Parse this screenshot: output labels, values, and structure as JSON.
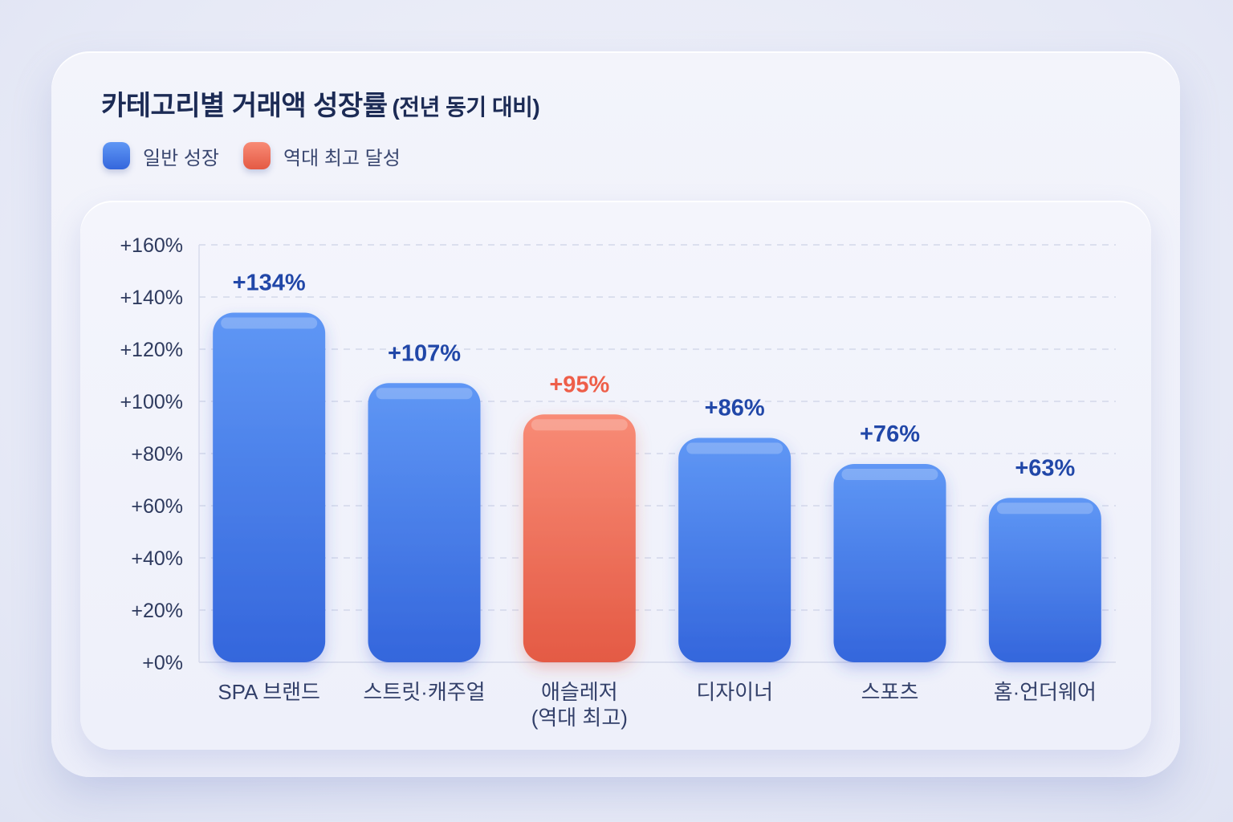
{
  "title": "카테고리별 거래액 성장률",
  "subtitle": "(전년 동기 대비)",
  "legend": [
    {
      "label": "일반 성장",
      "color": "#3f73e6"
    },
    {
      "label": "역대 최고 달성",
      "color": "#f26a55"
    }
  ],
  "colors": {
    "normal_top": "#5f97f5",
    "normal_bottom": "#3466dc",
    "record_top": "#f88b76",
    "record_bottom": "#e45a44",
    "normal_label": "#2147a8",
    "record_label": "#ee5e49"
  },
  "chart_data": {
    "type": "bar",
    "title": "카테고리별 거래액 성장률 (전년 동기 대비)",
    "categories": [
      "SPA 브랜드",
      "스트릿·캐주얼",
      "애슬레저\n(역대 최고)",
      "디자이너",
      "스포츠",
      "홈·언더웨어"
    ],
    "values": [
      134,
      107,
      95,
      86,
      76,
      63
    ],
    "value_labels": [
      "+134%",
      "+107%",
      "+95%",
      "+86%",
      "+76%",
      "+63%"
    ],
    "highlight": [
      false,
      false,
      true,
      false,
      false,
      false
    ],
    "ylim": [
      0,
      160
    ],
    "yticks": [
      0,
      20,
      40,
      60,
      80,
      100,
      120,
      140,
      160
    ],
    "ytick_labels": [
      "+0%",
      "+20%",
      "+40%",
      "+60%",
      "+80%",
      "+100%",
      "+120%",
      "+140%",
      "+160%"
    ],
    "xlabel": "",
    "ylabel": "",
    "grid": true,
    "legend_position": "top-left"
  }
}
